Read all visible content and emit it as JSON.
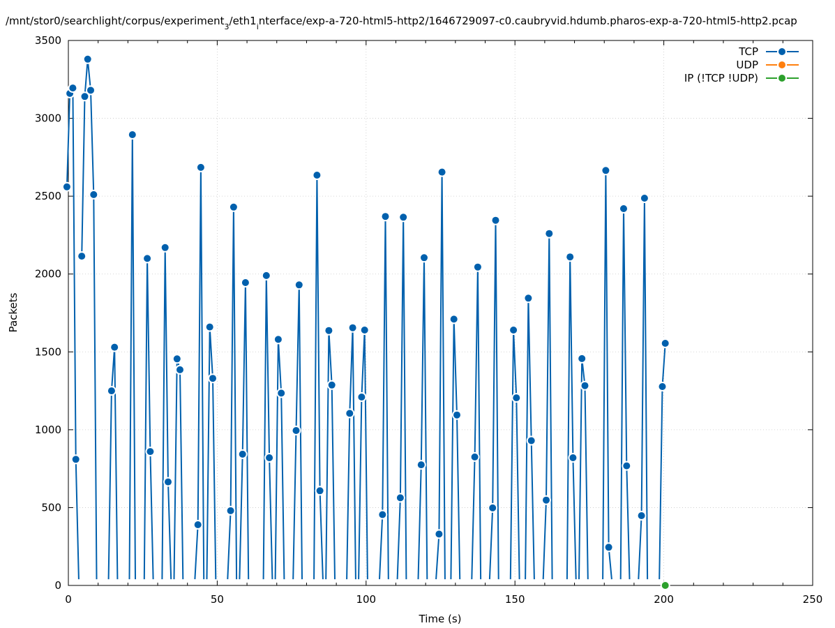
{
  "chart_data": {
    "type": "line",
    "title": "/mnt/stor0/searchlight/corpus/experiment_3/eth1_interface/exp-a-720-html5-http2/1646729097-c0.caubryvid.hdumb.pharos-exp-a-720-html5-http2.pcap",
    "title_parts": {
      "a": "/mnt/stor0/searchlight/corpus/experiment",
      "sub1": "3",
      "b": "/eth1",
      "sub2": "i",
      "c": "nterface/exp-a-720-html5-http2/1646729097-c0.caubryvid.hdumb.pharos-exp-a-720-html5-http2.pcap"
    },
    "xlabel": "Time (s)",
    "ylabel": "Packets",
    "xlim": [
      0,
      250
    ],
    "ylim": [
      0,
      3500
    ],
    "xticks": [
      0,
      50,
      100,
      150,
      200,
      250
    ],
    "yticks": [
      0,
      500,
      1000,
      1500,
      2000,
      2500,
      3000,
      3500
    ],
    "grid": true,
    "legend_position": "top-right",
    "series": [
      {
        "name": "TCP",
        "color": "#0060ad",
        "segments": [
          [
            [
              -0.5,
              2560
            ],
            [
              0.5,
              3160
            ],
            [
              1.5,
              3195
            ],
            [
              2.5,
              810
            ],
            [
              3.5,
              40
            ]
          ],
          [
            [
              4.5,
              2115
            ],
            [
              5.5,
              3140
            ],
            [
              6.5,
              3380
            ],
            [
              7.5,
              3180
            ],
            [
              8.5,
              2510
            ],
            [
              9.5,
              40
            ]
          ],
          [
            [
              13.5,
              40
            ],
            [
              14.5,
              1250
            ],
            [
              15.5,
              1530
            ],
            [
              16.5,
              40
            ]
          ],
          [
            [
              20.5,
              40
            ],
            [
              21.5,
              2895
            ],
            [
              22.5,
              40
            ]
          ],
          [
            [
              25.5,
              40
            ],
            [
              26.5,
              2100
            ],
            [
              27.5,
              860
            ],
            [
              28.5,
              40
            ]
          ],
          [
            [
              31.5,
              40
            ],
            [
              32.5,
              2170
            ],
            [
              33.5,
              665
            ],
            [
              34.5,
              40
            ]
          ],
          [
            [
              35.5,
              40
            ],
            [
              36.5,
              1455
            ],
            [
              37.5,
              1385
            ],
            [
              38.5,
              40
            ]
          ],
          [
            [
              42.5,
              40
            ],
            [
              43.5,
              390
            ],
            [
              44.5,
              2685
            ],
            [
              45.5,
              40
            ]
          ],
          [
            [
              46.5,
              40
            ],
            [
              47.5,
              1660
            ],
            [
              48.5,
              1330
            ],
            [
              49.5,
              40
            ]
          ],
          [
            [
              53.5,
              40
            ],
            [
              54.5,
              480
            ],
            [
              55.5,
              2430
            ],
            [
              56.5,
              40
            ]
          ],
          [
            [
              57.5,
              40
            ],
            [
              58.5,
              843
            ],
            [
              59.5,
              1945
            ],
            [
              60.5,
              40
            ]
          ],
          [
            [
              65.5,
              40
            ],
            [
              66.5,
              1990
            ],
            [
              67.5,
              820
            ],
            [
              68.5,
              40
            ]
          ],
          [
            [
              69.5,
              40
            ],
            [
              70.5,
              1580
            ],
            [
              71.5,
              1235
            ],
            [
              72.5,
              40
            ]
          ],
          [
            [
              75.5,
              40
            ],
            [
              76.5,
              995
            ],
            [
              77.5,
              1930
            ],
            [
              78.5,
              40
            ]
          ],
          [
            [
              82.5,
              40
            ],
            [
              83.5,
              2635
            ],
            [
              84.5,
              608
            ],
            [
              85.5,
              40
            ]
          ],
          [
            [
              86.5,
              40
            ],
            [
              87.5,
              1637
            ],
            [
              88.5,
              1287
            ],
            [
              89.5,
              40
            ]
          ],
          [
            [
              93.5,
              40
            ],
            [
              94.5,
              1105
            ],
            [
              95.5,
              1655
            ],
            [
              96.5,
              40
            ]
          ],
          [
            [
              97.5,
              40
            ],
            [
              98.5,
              1210
            ],
            [
              99.5,
              1640
            ],
            [
              100.5,
              40
            ]
          ],
          [
            [
              104.5,
              40
            ],
            [
              105.5,
              455
            ],
            [
              106.5,
              2370
            ],
            [
              107.5,
              40
            ]
          ],
          [
            [
              110.5,
              40
            ],
            [
              111.5,
              563
            ],
            [
              112.5,
              2365
            ],
            [
              113.5,
              40
            ]
          ],
          [
            [
              117.5,
              40
            ],
            [
              118.5,
              775
            ],
            [
              119.5,
              2105
            ],
            [
              120.5,
              40
            ]
          ],
          [
            [
              123.5,
              40
            ],
            [
              124.5,
              330
            ],
            [
              125.5,
              2655
            ],
            [
              126.5,
              40
            ]
          ],
          [
            [
              128.5,
              40
            ],
            [
              129.5,
              1710
            ],
            [
              130.5,
              1095
            ],
            [
              131.5,
              40
            ]
          ],
          [
            [
              135.5,
              40
            ],
            [
              136.5,
              825
            ],
            [
              137.5,
              2045
            ],
            [
              138.5,
              40
            ]
          ],
          [
            [
              141.5,
              40
            ],
            [
              142.5,
              498
            ],
            [
              143.5,
              2345
            ],
            [
              144.5,
              40
            ]
          ],
          [
            [
              148.5,
              40
            ],
            [
              149.5,
              1640
            ],
            [
              150.5,
              1205
            ],
            [
              151.5,
              40
            ]
          ],
          [
            [
              153.5,
              40
            ],
            [
              154.5,
              1845
            ],
            [
              155.5,
              930
            ],
            [
              156.5,
              40
            ]
          ],
          [
            [
              159.5,
              40
            ],
            [
              160.5,
              548
            ],
            [
              161.5,
              2260
            ],
            [
              162.5,
              40
            ]
          ],
          [
            [
              167.5,
              40
            ],
            [
              168.5,
              2110
            ],
            [
              169.5,
              820
            ],
            [
              170.5,
              40
            ]
          ],
          [
            [
              171.5,
              40
            ],
            [
              172.5,
              1457
            ],
            [
              173.5,
              1283
            ],
            [
              174.5,
              40
            ]
          ],
          [
            [
              179.5,
              40
            ],
            [
              180.5,
              2665
            ],
            [
              181.5,
              245
            ],
            [
              182.5,
              40
            ]
          ],
          [
            [
              185.5,
              40
            ],
            [
              186.5,
              2420
            ],
            [
              187.5,
              768
            ],
            [
              188.5,
              40
            ]
          ],
          [
            [
              191.5,
              40
            ],
            [
              192.5,
              448
            ],
            [
              193.5,
              2487
            ],
            [
              194.5,
              40
            ]
          ],
          [
            [
              198.5,
              40
            ],
            [
              199.5,
              1277
            ],
            [
              200.5,
              1555
            ]
          ]
        ]
      },
      {
        "name": "UDP",
        "color": "#ff7f0e",
        "segments": []
      },
      {
        "name": "IP (!TCP  !UDP)",
        "color": "#2ca02c",
        "segments": [
          [
            [
              200.5,
              0
            ]
          ]
        ]
      }
    ]
  }
}
